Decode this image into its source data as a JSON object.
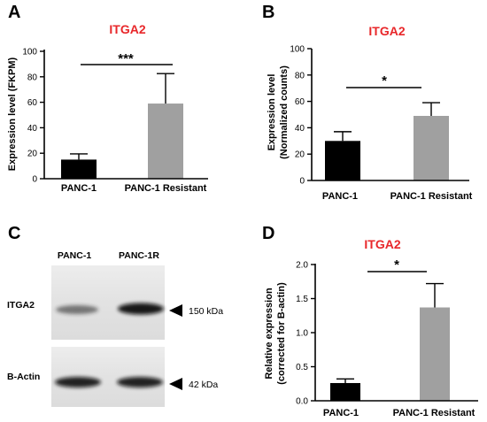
{
  "colors": {
    "title": "#e8272a",
    "bar_control": "#000000",
    "bar_resistant": "#a0a0a0",
    "axis": "#000000"
  },
  "chart_data": [
    {
      "panel": "A",
      "type": "bar",
      "title": "ITGA2",
      "ylabel": "Expression level (FKPM)",
      "xlabel": "",
      "categories": [
        "PANC-1",
        "PANC-1 Resistant"
      ],
      "values": [
        15,
        59
      ],
      "error": [
        4.5,
        23.5
      ],
      "bar_colors": [
        "#000000",
        "#a0a0a0"
      ],
      "ylim": [
        0,
        100
      ],
      "yticks": [
        0,
        20,
        40,
        60,
        80,
        100
      ],
      "significance": "***",
      "grid": false
    },
    {
      "panel": "B",
      "type": "bar",
      "title": "ITGA2",
      "ylabel": [
        "Expression level",
        "(Normalized counts)"
      ],
      "xlabel": "",
      "categories": [
        "PANC-1",
        "PANC-1 Resistant"
      ],
      "values": [
        30,
        49
      ],
      "error": [
        7,
        10
      ],
      "bar_colors": [
        "#000000",
        "#a0a0a0"
      ],
      "ylim": [
        0,
        100
      ],
      "yticks": [
        0,
        20,
        40,
        60,
        80,
        100
      ],
      "significance": "*",
      "grid": false
    },
    {
      "panel": "D",
      "type": "bar",
      "title": "ITGA2",
      "ylabel": [
        "Relative expression",
        "(corrected for B-actin)"
      ],
      "xlabel": "",
      "categories": [
        "PANC-1",
        "PANC-1 Resistant"
      ],
      "values": [
        0.26,
        1.37
      ],
      "error": [
        0.06,
        0.35
      ],
      "bar_colors": [
        "#000000",
        "#a0a0a0"
      ],
      "ylim": [
        0,
        2.0
      ],
      "yticks": [
        "0.0",
        "0.5",
        "1.0",
        "1.5",
        "2.0"
      ],
      "significance": "*",
      "grid": false
    }
  ],
  "blot": {
    "panel": "C",
    "lanes": [
      "PANC-1",
      "PANC-1R"
    ],
    "rows": [
      {
        "label": "ITGA2",
        "size": "150 kDa",
        "intensity": [
          0.55,
          0.95
        ]
      },
      {
        "label": "B-Actin",
        "size": "42 kDa",
        "intensity": [
          0.9,
          0.9
        ]
      }
    ]
  }
}
